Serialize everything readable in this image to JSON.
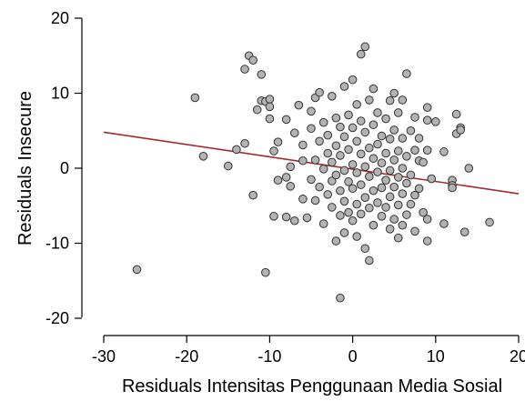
{
  "chart_data": {
    "type": "scatter",
    "xlabel": "Residuals Intensitas Penggunaan Media Sosial",
    "ylabel": "Residuals Insecure",
    "xlim": [
      -30,
      20
    ],
    "ylim": [
      -20,
      20
    ],
    "x_ticks": [
      -30,
      -20,
      -10,
      0,
      10,
      20
    ],
    "y_ticks": [
      -20,
      -10,
      0,
      10,
      20
    ],
    "x_tick_labels": [
      "-30",
      "-20",
      "-10",
      "0",
      "10",
      "20"
    ],
    "y_tick_labels": [
      "-20",
      "-10",
      "0",
      "10",
      "20"
    ],
    "grid": false,
    "colors": {
      "point_fill": "#b3b3b3",
      "point_stroke": "#333333",
      "fit_line": "#a52a2a"
    },
    "fit_line": {
      "x": [
        -30,
        20
      ],
      "y": [
        4.8,
        -3.4
      ]
    },
    "points": [
      [
        -26.0,
        -13.5
      ],
      [
        -19.0,
        9.4
      ],
      [
        -18.0,
        1.6
      ],
      [
        -15.0,
        0.3
      ],
      [
        -14.0,
        2.5
      ],
      [
        -13.0,
        3.3
      ],
      [
        -13.0,
        13.2
      ],
      [
        -12.5,
        15.0
      ],
      [
        -12.0,
        14.4
      ],
      [
        -12.0,
        -3.6
      ],
      [
        -11.5,
        7.8
      ],
      [
        -11.0,
        12.5
      ],
      [
        -11.0,
        9.0
      ],
      [
        -10.5,
        8.9
      ],
      [
        -10.5,
        -13.9
      ],
      [
        -10.0,
        9.2
      ],
      [
        -10.0,
        8.2
      ],
      [
        -10.0,
        6.6
      ],
      [
        -9.5,
        -6.4
      ],
      [
        -9.5,
        2.3
      ],
      [
        -9.0,
        -1.6
      ],
      [
        -9.0,
        3.5
      ],
      [
        -8.0,
        6.5
      ],
      [
        -8.0,
        -1.2
      ],
      [
        -8.0,
        -6.5
      ],
      [
        -7.5,
        -2.4
      ],
      [
        -7.5,
        0.2
      ],
      [
        -7.0,
        4.7
      ],
      [
        -7.0,
        -7.0
      ],
      [
        -6.5,
        8.4
      ],
      [
        -6.0,
        1.0
      ],
      [
        -6.0,
        -4.1
      ],
      [
        -6.0,
        3.1
      ],
      [
        -5.5,
        -6.6
      ],
      [
        -5.0,
        5.3
      ],
      [
        -5.0,
        -1.5
      ],
      [
        -5.0,
        7.6
      ],
      [
        -4.5,
        -4.3
      ],
      [
        -4.5,
        1.1
      ],
      [
        -4.5,
        9.4
      ],
      [
        -4.0,
        10.1
      ],
      [
        -4.0,
        3.6
      ],
      [
        -4.0,
        -2.5
      ],
      [
        -3.5,
        6.1
      ],
      [
        -3.5,
        -0.1
      ],
      [
        -3.5,
        -7.4
      ],
      [
        -3.0,
        4.4
      ],
      [
        -3.0,
        2.0
      ],
      [
        -3.0,
        -3.5
      ],
      [
        -2.5,
        9.6
      ],
      [
        -2.5,
        -1.7
      ],
      [
        -2.5,
        0.8
      ],
      [
        -2.5,
        -5.2
      ],
      [
        -2.0,
        6.7
      ],
      [
        -2.0,
        3.0
      ],
      [
        -2.0,
        -0.9
      ],
      [
        -2.0,
        -9.7
      ],
      [
        -1.5,
        5.5
      ],
      [
        -1.5,
        1.7
      ],
      [
        -1.5,
        -3.0
      ],
      [
        -1.5,
        -6.3
      ],
      [
        -1.5,
        -17.3
      ],
      [
        -1.0,
        10.9
      ],
      [
        -1.0,
        4.2
      ],
      [
        -1.0,
        -0.3
      ],
      [
        -1.0,
        -4.4
      ],
      [
        -1.0,
        -8.6
      ],
      [
        -0.5,
        7.1
      ],
      [
        -0.5,
        2.5
      ],
      [
        -0.5,
        -1.8
      ],
      [
        -0.5,
        -5.9
      ],
      [
        0.0,
        11.8
      ],
      [
        0.0,
        5.4
      ],
      [
        0.0,
        0.5
      ],
      [
        0.0,
        -2.7
      ],
      [
        0.0,
        -7.0
      ],
      [
        0.5,
        8.5
      ],
      [
        0.5,
        3.6
      ],
      [
        0.5,
        -0.6
      ],
      [
        0.5,
        -4.8
      ],
      [
        0.5,
        -9.1
      ],
      [
        1.0,
        15.2
      ],
      [
        1.0,
        6.3
      ],
      [
        1.0,
        1.9
      ],
      [
        1.0,
        -2.2
      ],
      [
        1.0,
        -6.1
      ],
      [
        1.5,
        16.2
      ],
      [
        1.5,
        4.8
      ],
      [
        1.5,
        0.2
      ],
      [
        1.5,
        -3.9
      ],
      [
        1.5,
        -10.7
      ],
      [
        2.0,
        9.1
      ],
      [
        2.0,
        2.7
      ],
      [
        2.0,
        -1.1
      ],
      [
        2.0,
        -5.3
      ],
      [
        2.0,
        -12.3
      ],
      [
        2.5,
        10.6
      ],
      [
        2.5,
        5.8
      ],
      [
        2.5,
        1.3
      ],
      [
        2.5,
        -3.0
      ],
      [
        2.5,
        -7.6
      ],
      [
        3.0,
        7.4
      ],
      [
        3.0,
        3.2
      ],
      [
        3.0,
        -0.5
      ],
      [
        3.0,
        -4.6
      ],
      [
        3.5,
        4.3
      ],
      [
        3.5,
        0.7
      ],
      [
        3.5,
        -2.6
      ],
      [
        3.5,
        -6.4
      ],
      [
        4.0,
        6.6
      ],
      [
        4.0,
        2.0
      ],
      [
        4.0,
        -1.6
      ],
      [
        4.0,
        -5.2
      ],
      [
        4.5,
        9.0
      ],
      [
        4.5,
        3.9
      ],
      [
        4.5,
        -0.3
      ],
      [
        4.5,
        -3.8
      ],
      [
        4.5,
        -8.1
      ],
      [
        5.0,
        10.0
      ],
      [
        5.0,
        5.1
      ],
      [
        5.0,
        1.1
      ],
      [
        5.0,
        -2.5
      ],
      [
        5.0,
        -6.8
      ],
      [
        5.5,
        7.4
      ],
      [
        5.5,
        2.3
      ],
      [
        5.5,
        -1.2
      ],
      [
        5.5,
        -4.9
      ],
      [
        5.5,
        -9.3
      ],
      [
        6.0,
        9.1
      ],
      [
        6.0,
        4.0
      ],
      [
        6.0,
        0.0
      ],
      [
        6.0,
        -3.4
      ],
      [
        6.0,
        -7.6
      ],
      [
        6.5,
        12.6
      ],
      [
        6.5,
        1.6
      ],
      [
        6.5,
        -2.0
      ],
      [
        6.5,
        -6.2
      ],
      [
        7.0,
        5.0
      ],
      [
        7.0,
        -0.9
      ],
      [
        7.0,
        -4.8
      ],
      [
        7.5,
        6.8
      ],
      [
        7.5,
        2.4
      ],
      [
        7.5,
        -3.6
      ],
      [
        7.5,
        -8.4
      ],
      [
        8.0,
        4.0
      ],
      [
        8.0,
        1.0
      ],
      [
        8.0,
        -2.7
      ],
      [
        8.5,
        0.8
      ],
      [
        8.5,
        -5.9
      ],
      [
        9.0,
        8.1
      ],
      [
        9.0,
        6.4
      ],
      [
        9.0,
        2.4
      ],
      [
        9.0,
        -6.8
      ],
      [
        9.0,
        -9.7
      ],
      [
        9.5,
        -1.4
      ],
      [
        10.0,
        6.2
      ],
      [
        11.0,
        2.2
      ],
      [
        11.0,
        -7.4
      ],
      [
        12.0,
        -1.6
      ],
      [
        12.0,
        -2.3
      ],
      [
        12.0,
        -2.6
      ],
      [
        12.5,
        7.2
      ],
      [
        12.5,
        4.6
      ],
      [
        13.0,
        5.4
      ],
      [
        13.0,
        5.1
      ],
      [
        13.5,
        -8.5
      ],
      [
        14.0,
        0.0
      ],
      [
        16.5,
        -7.2
      ]
    ]
  }
}
